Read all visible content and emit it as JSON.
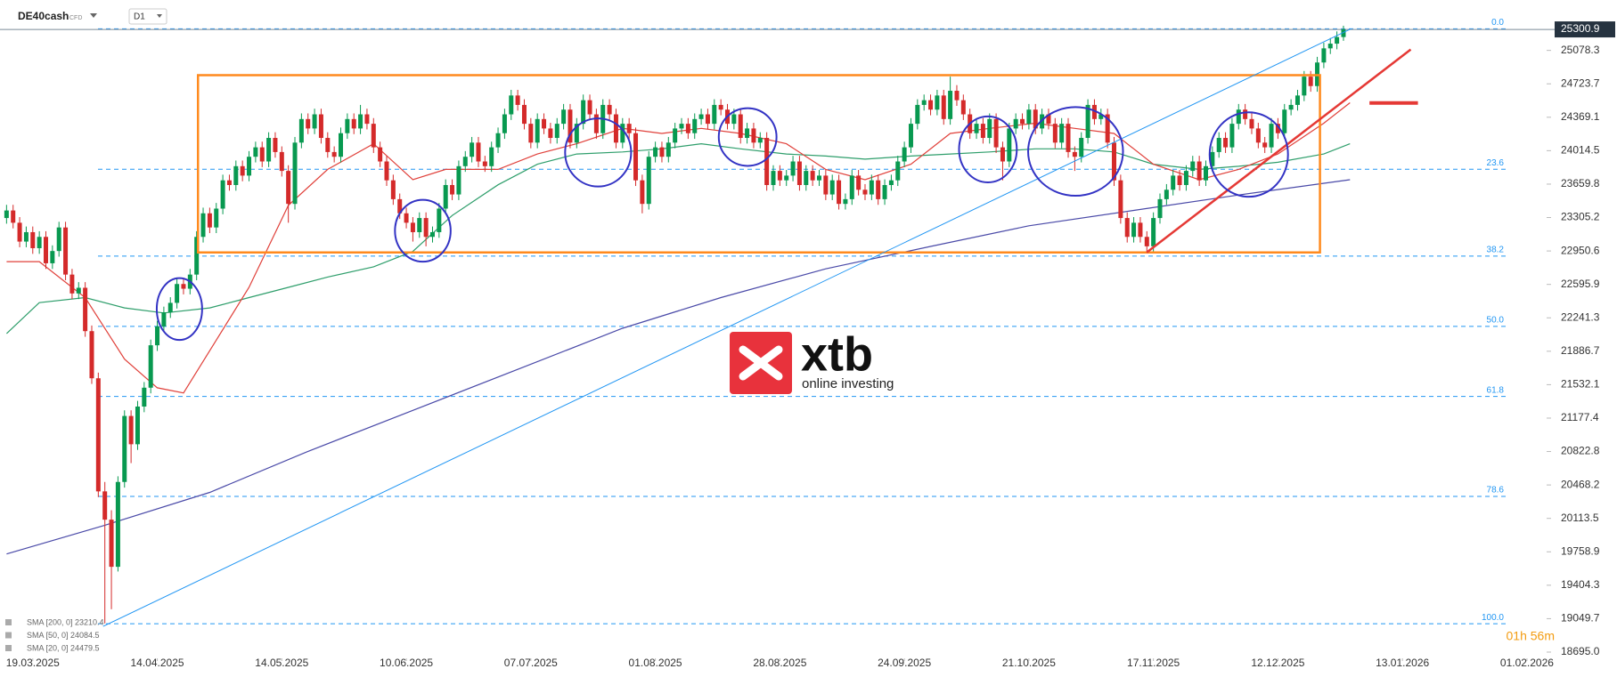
{
  "header": {
    "symbol": "DE40cash",
    "instrument_type": "CFD",
    "timeframe": "D1"
  },
  "watermark": {
    "brand": "xtb",
    "tagline": "online investing"
  },
  "countdown": "01h 56m",
  "chart_data": {
    "type": "candlestick",
    "up_color": "#089950",
    "down_color": "#d42a2a",
    "open": [
      23300,
      23380,
      23250,
      23050,
      23150,
      22980,
      23100,
      22820,
      22950,
      23200,
      22700,
      22500,
      22560,
      22100,
      21600,
      20400,
      20100,
      19600,
      20500,
      21200,
      20900,
      21300,
      21500,
      21950,
      22150,
      22300,
      22400,
      22600,
      22550,
      22700,
      23100,
      23350,
      23200,
      23400,
      23700,
      23650,
      23850,
      23750,
      23950,
      24050,
      23900,
      24150,
      24000,
      23800,
      23450,
      24100,
      24350,
      24250,
      24400,
      24150,
      24000,
      23950,
      24200,
      24350,
      24250,
      24400,
      24300,
      24050,
      23900,
      23700,
      23500,
      23350,
      23250,
      23150,
      23300,
      23100,
      23150,
      23400,
      23650,
      23550,
      23850,
      23950,
      24100,
      23900,
      23850,
      24050,
      24200,
      24400,
      24600,
      24500,
      24300,
      24100,
      24350,
      24250,
      24150,
      24300,
      24450,
      24100,
      24300,
      24550,
      24400,
      24200,
      24500,
      24400,
      24100,
      24300,
      24200,
      23700,
      23450,
      23950,
      24050,
      23950,
      24100,
      24250,
      24300,
      24200,
      24350,
      24400,
      24300,
      24500,
      24450,
      24300,
      24400,
      24150,
      24250,
      24100,
      24150,
      23650,
      23800,
      23700,
      23750,
      23900,
      23650,
      23800,
      23700,
      23750,
      23550,
      23700,
      23450,
      23500,
      23750,
      23600,
      23550,
      23700,
      23500,
      23650,
      23700,
      23900,
      24050,
      24300,
      24500,
      24550,
      24450,
      24600,
      24350,
      24650,
      24550,
      24400,
      24200,
      24300,
      24150,
      24350,
      24050,
      23900,
      24250,
      24350,
      24300,
      24450,
      24250,
      24400,
      24300,
      24100,
      24300,
      24000,
      23950,
      24150,
      24500,
      24350,
      24400,
      24100,
      23700,
      23300,
      23100,
      23250,
      23100,
      23000,
      23300,
      23500,
      23600,
      23750,
      23650,
      23800,
      23900,
      23700,
      23850,
      24000,
      24150,
      24050,
      24300,
      24450,
      24350,
      24250,
      24100,
      24050,
      24300,
      24200,
      24450,
      24500,
      24600,
      24800,
      24700,
      24950,
      25100,
      25150,
      25220
    ],
    "high": [
      23440,
      23440,
      23310,
      23210,
      23210,
      23160,
      23160,
      23010,
      23260,
      23260,
      22760,
      22620,
      22620,
      22160,
      21660,
      20500,
      20200,
      20560,
      21260,
      21260,
      21360,
      21560,
      22010,
      22210,
      22360,
      22460,
      22660,
      22660,
      22760,
      23160,
      23410,
      23410,
      23460,
      23760,
      23760,
      23910,
      23910,
      24010,
      24110,
      24110,
      24210,
      24210,
      24060,
      23860,
      24160,
      24410,
      24410,
      24460,
      24460,
      24210,
      24060,
      24260,
      24410,
      24410,
      24500,
      24460,
      24360,
      24110,
      23960,
      23760,
      23560,
      23410,
      23310,
      23360,
      23360,
      23210,
      23460,
      23710,
      23710,
      23910,
      24010,
      24160,
      24160,
      23960,
      24110,
      24260,
      24460,
      24660,
      24660,
      24560,
      24360,
      24410,
      24410,
      24310,
      24360,
      24510,
      24510,
      24360,
      24610,
      24610,
      24460,
      24560,
      24560,
      24460,
      24360,
      24360,
      24260,
      23760,
      24010,
      24110,
      24110,
      24160,
      24310,
      24360,
      24360,
      24410,
      24460,
      24460,
      24560,
      24560,
      24510,
      24460,
      24460,
      24310,
      24310,
      24210,
      24210,
      23860,
      23860,
      23810,
      23960,
      23960,
      23860,
      23860,
      23810,
      23810,
      23760,
      23760,
      23560,
      23810,
      23810,
      23660,
      23760,
      23760,
      23710,
      23760,
      23960,
      24110,
      24360,
      24560,
      24610,
      24610,
      24660,
      24660,
      24800,
      24710,
      24610,
      24460,
      24360,
      24360,
      24410,
      24410,
      24110,
      24310,
      24410,
      24410,
      24510,
      24510,
      24460,
      24460,
      24360,
      24360,
      24360,
      24060,
      24210,
      24560,
      24560,
      24460,
      24460,
      24160,
      23760,
      23360,
      23310,
      23310,
      23160,
      23360,
      23560,
      23660,
      23810,
      23810,
      23860,
      23960,
      23960,
      23910,
      24060,
      24210,
      24210,
      24360,
      24510,
      24510,
      24410,
      24310,
      24160,
      24360,
      24360,
      24510,
      24560,
      24660,
      24860,
      24860,
      25010,
      25160,
      25210,
      25280,
      25340
    ],
    "low": [
      23240,
      23190,
      22990,
      22990,
      22920,
      22920,
      22760,
      22760,
      22890,
      22640,
      22440,
      22440,
      22040,
      21540,
      20340,
      19000,
      19150,
      19550,
      20440,
      20700,
      20840,
      21240,
      21440,
      21890,
      22090,
      22240,
      22340,
      22490,
      22490,
      22640,
      23040,
      23140,
      23140,
      23340,
      23590,
      23590,
      23690,
      23690,
      23890,
      23840,
      23840,
      23940,
      23740,
      23250,
      23390,
      24040,
      24190,
      24190,
      24090,
      23940,
      23890,
      23890,
      24140,
      24190,
      24190,
      24240,
      23990,
      23840,
      23640,
      23440,
      23290,
      23190,
      23050,
      23090,
      23000,
      23040,
      23090,
      23340,
      23490,
      23490,
      23790,
      23890,
      23840,
      23790,
      23790,
      23990,
      24140,
      24340,
      24440,
      24240,
      24040,
      24040,
      24190,
      24090,
      24090,
      24240,
      24040,
      24040,
      24240,
      24340,
      24140,
      24140,
      24340,
      24040,
      24040,
      24140,
      23640,
      23350,
      23390,
      23890,
      23890,
      23890,
      24040,
      24190,
      24140,
      24140,
      24290,
      24240,
      24240,
      24390,
      24240,
      24240,
      24090,
      24090,
      24040,
      24040,
      23590,
      23590,
      23640,
      23640,
      23690,
      23590,
      23590,
      23640,
      23640,
      23490,
      23490,
      23390,
      23390,
      23440,
      23540,
      23490,
      23490,
      23440,
      23440,
      23590,
      23640,
      23840,
      23990,
      24240,
      24440,
      24390,
      24390,
      24290,
      24290,
      24490,
      24340,
      24140,
      24140,
      24090,
      24090,
      23990,
      23700,
      23840,
      24190,
      24240,
      24240,
      24190,
      24190,
      24240,
      24040,
      24040,
      23940,
      23800,
      23890,
      24090,
      24290,
      24290,
      24040,
      23640,
      23240,
      23040,
      23040,
      23040,
      22940,
      22940,
      23240,
      23440,
      23540,
      23590,
      23590,
      23740,
      23640,
      23640,
      23790,
      23940,
      23990,
      23990,
      24240,
      24290,
      24190,
      24040,
      23990,
      23990,
      24140,
      24140,
      24390,
      24440,
      24540,
      24640,
      24640,
      24890,
      25040,
      25090,
      25180
    ],
    "close": [
      23380,
      23250,
      23050,
      23150,
      22980,
      23100,
      22820,
      22950,
      23200,
      22700,
      22500,
      22560,
      22100,
      21600,
      20400,
      20100,
      19600,
      20500,
      21200,
      20900,
      21300,
      21500,
      21950,
      22150,
      22300,
      22400,
      22600,
      22550,
      22700,
      23100,
      23350,
      23200,
      23400,
      23700,
      23650,
      23850,
      23750,
      23950,
      24050,
      23900,
      24150,
      24000,
      23800,
      23450,
      24100,
      24350,
      24250,
      24400,
      24150,
      24000,
      23950,
      24200,
      24350,
      24250,
      24400,
      24300,
      24050,
      23900,
      23700,
      23500,
      23350,
      23250,
      23150,
      23300,
      23100,
      23150,
      23400,
      23650,
      23550,
      23850,
      23950,
      24100,
      23900,
      23850,
      24050,
      24200,
      24400,
      24600,
      24500,
      24300,
      24100,
      24350,
      24250,
      24150,
      24300,
      24450,
      24100,
      24300,
      24550,
      24400,
      24200,
      24500,
      24400,
      24100,
      24300,
      24200,
      23700,
      23450,
      23950,
      24050,
      23950,
      24100,
      24250,
      24300,
      24200,
      24350,
      24400,
      24300,
      24500,
      24450,
      24300,
      24400,
      24150,
      24250,
      24100,
      24150,
      23650,
      23800,
      23700,
      23750,
      23900,
      23650,
      23800,
      23700,
      23750,
      23550,
      23700,
      23450,
      23500,
      23750,
      23600,
      23550,
      23700,
      23500,
      23650,
      23700,
      23900,
      24050,
      24300,
      24500,
      24550,
      24450,
      24600,
      24350,
      24650,
      24550,
      24400,
      24200,
      24300,
      24150,
      24350,
      24050,
      23900,
      24250,
      24350,
      24300,
      24450,
      24250,
      24400,
      24300,
      24100,
      24300,
      24000,
      23950,
      24150,
      24500,
      24350,
      24400,
      24100,
      23700,
      23300,
      23100,
      23250,
      23100,
      23000,
      23300,
      23500,
      23600,
      23750,
      23650,
      23800,
      23900,
      23700,
      23850,
      24000,
      24150,
      24050,
      24300,
      24450,
      24350,
      24250,
      24100,
      24050,
      24300,
      24200,
      24450,
      24500,
      24600,
      24800,
      24700,
      24950,
      25100,
      25150,
      25220,
      25300.9
    ],
    "last_price": 25300.9,
    "xlim": [
      -1,
      235
    ],
    "xticks": [
      {
        "value": 4,
        "label": "19.03.2025"
      },
      {
        "value": 23,
        "label": "14.04.2025"
      },
      {
        "value": 42,
        "label": "14.05.2025"
      },
      {
        "value": 61,
        "label": "10.06.2025"
      },
      {
        "value": 80,
        "label": "07.07.2025"
      },
      {
        "value": 99,
        "label": "01.08.2025"
      },
      {
        "value": 118,
        "label": "28.08.2025"
      },
      {
        "value": 137,
        "label": "24.09.2025"
      },
      {
        "value": 156,
        "label": "21.10.2025"
      },
      {
        "value": 175,
        "label": "17.11.2025"
      },
      {
        "value": 194,
        "label": "12.12.2025"
      },
      {
        "value": 213,
        "label": "13.01.2026"
      },
      {
        "value": 232,
        "label": "01.02.2026"
      }
    ],
    "ylim": [
      18629,
      25613
    ],
    "yticks": [
      25078.3,
      24723.7,
      24369.1,
      24014.5,
      23659.8,
      23305.2,
      22950.6,
      22595.9,
      22241.3,
      21886.7,
      21532.1,
      21177.4,
      20822.8,
      20468.2,
      20113.5,
      19758.9,
      19404.3,
      19049.7,
      {
        "value": 18695,
        "label": "18695.0"
      }
    ],
    "fib_color": "#2196f3",
    "fib_levels": [
      {
        "value": 25307,
        "label": "0.0"
      },
      {
        "value": 23818,
        "label": "23.6"
      },
      {
        "value": 22896,
        "label": "38.2"
      },
      {
        "value": 22151,
        "label": "50.0"
      },
      {
        "value": 21407,
        "label": "61.8"
      },
      {
        "value": 20347,
        "label": "78.6"
      },
      {
        "value": 18996,
        "label": "100.0"
      }
    ],
    "indicators": [
      {
        "name": "SMA [200, 0] 23210.4",
        "color": "#4a4aa8",
        "x": [
          0,
          15,
          31,
          46,
          62,
          78,
          94,
          109,
          125,
          141,
          156,
          172,
          188,
          205
        ],
        "values": [
          19736,
          20041,
          20389,
          20824,
          21259,
          21694,
          22130,
          22456,
          22761,
          22999,
          23218,
          23381,
          23544,
          23707
        ]
      },
      {
        "name": "SMA [50, 0] 24084.5",
        "color": "#2e9e6b",
        "x": [
          0,
          5,
          12,
          18,
          24,
          31,
          37,
          43,
          49,
          56,
          62,
          68,
          75,
          81,
          87,
          94,
          100,
          106,
          112,
          119,
          125,
          131,
          138,
          144,
          150,
          157,
          163,
          169,
          175,
          182,
          188,
          194,
          201,
          205
        ],
        "values": [
          22075,
          22402,
          22456,
          22347,
          22293,
          22347,
          22456,
          22565,
          22674,
          22783,
          22946,
          23327,
          23653,
          23871,
          23979,
          24001,
          24034,
          24088,
          24034,
          23979,
          23958,
          23925,
          23958,
          23979,
          24001,
          24034,
          24034,
          24001,
          23871,
          23816,
          23849,
          23892,
          23979,
          24088
        ]
      },
      {
        "name": "SMA [20, 0] 24479.5",
        "color": "#e0403a",
        "x": [
          0,
          5,
          12,
          18,
          23,
          27,
          37,
          43,
          49,
          56,
          62,
          67,
          75,
          81,
          87,
          94,
          100,
          106,
          112,
          119,
          125,
          131,
          138,
          144,
          150,
          157,
          163,
          169,
          175,
          182,
          188,
          194,
          201,
          205
        ],
        "values": [
          22837,
          22837,
          22456,
          21803,
          21499,
          21444,
          22565,
          23435,
          23816,
          24088,
          23707,
          23816,
          23816,
          23979,
          24088,
          24251,
          24197,
          24251,
          24197,
          24088,
          23816,
          23707,
          23871,
          24197,
          24251,
          24306,
          24251,
          24197,
          23871,
          23707,
          23816,
          23979,
          24306,
          24523
        ]
      }
    ]
  }
}
